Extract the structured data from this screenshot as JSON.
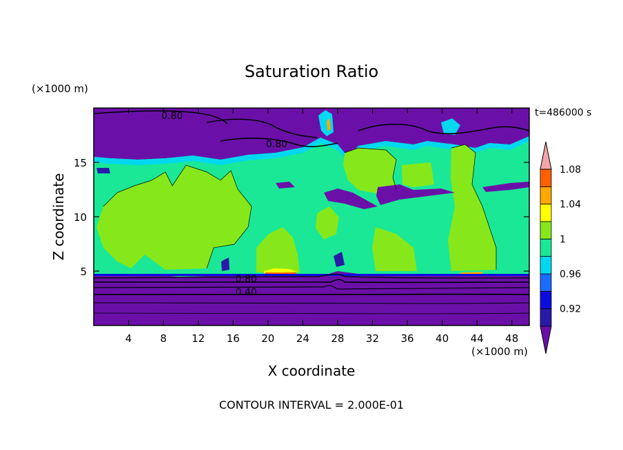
{
  "chart_data": {
    "type": "heatmap",
    "title": "Saturation Ratio",
    "xlabel": "X coordinate",
    "ylabel": "Z coordinate",
    "x_unit": "(×1000 m)",
    "y_unit": "(×1000 m)",
    "time_label": "t=486000 s",
    "footer": "CONTOUR INTERVAL = 2.000E-01",
    "xlim": [
      0,
      50
    ],
    "ylim": [
      0,
      20
    ],
    "x_ticks": [
      4,
      8,
      12,
      16,
      20,
      24,
      28,
      32,
      36,
      40,
      44,
      48
    ],
    "y_ticks": [
      5,
      10,
      15
    ],
    "contour_labels": [
      {
        "x": 9,
        "y": 19.3,
        "text": "0.80"
      },
      {
        "x": 21,
        "y": 16.7,
        "text": "0.80"
      },
      {
        "x": 17.5,
        "y": 4.3,
        "text": "0.80"
      },
      {
        "x": 17.5,
        "y": 3.1,
        "text": "0.40"
      }
    ],
    "colorbar": {
      "levels": [
        0.92,
        0.94,
        0.96,
        0.98,
        1.0,
        1.02,
        1.04,
        1.06,
        1.08,
        1.1
      ],
      "tick_labels": [
        "0.92",
        "0.96",
        "1",
        "1.04",
        "1.08"
      ],
      "colors": [
        "#6a10a8",
        "#2a1aa8",
        "#0c0ce0",
        "#1a6cff",
        "#00d8f0",
        "#1ae896",
        "#86e81a",
        "#ffff00",
        "#ffa800",
        "#ff6000",
        "#ff1a1a",
        "#f4a6a6"
      ]
    }
  }
}
